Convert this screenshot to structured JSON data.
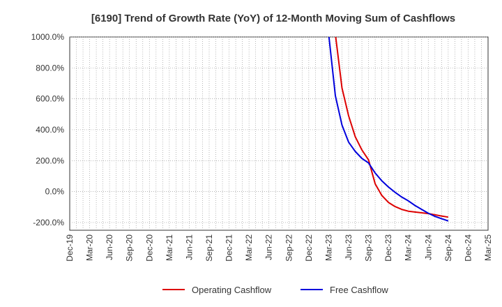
{
  "chart_data": {
    "type": "line",
    "title": "[6190]  Trend of Growth Rate (YoY) of 12-Month Moving Sum of Cashflows",
    "xlabel": "",
    "ylabel": "",
    "x_ticks": [
      "Dec-19",
      "Mar-20",
      "Jun-20",
      "Sep-20",
      "Dec-20",
      "Mar-21",
      "Jun-21",
      "Sep-21",
      "Dec-21",
      "Mar-22",
      "Jun-22",
      "Sep-22",
      "Dec-22",
      "Mar-23",
      "Jun-23",
      "Sep-23",
      "Dec-23",
      "Mar-24",
      "Jun-24",
      "Sep-24",
      "Dec-24",
      "Mar-25"
    ],
    "y_ticks": [
      "-200.0%",
      "0.0%",
      "200.0%",
      "400.0%",
      "600.0%",
      "800.0%",
      "1000.0%"
    ],
    "ylim": [
      -250,
      1000
    ],
    "y_unit": "%",
    "grid": true,
    "legend_position": "bottom",
    "series": [
      {
        "name": "Operating Cashflow",
        "color": "#dd0000",
        "x": [
          "2023-04",
          "2023-05",
          "2023-06",
          "2023-07",
          "2023-08",
          "2023-09",
          "2023-10",
          "2023-11",
          "2023-12",
          "2024-01",
          "2024-02",
          "2024-03",
          "2024-04",
          "2024-05",
          "2024-06",
          "2024-07",
          "2024-08",
          "2024-09"
        ],
        "values": [
          1000,
          670,
          490,
          355,
          270,
          205,
          50,
          -25,
          -70,
          -97,
          -115,
          -127,
          -132,
          -137,
          -142,
          -150,
          -158,
          -165
        ]
      },
      {
        "name": "Free Cashflow",
        "color": "#0000dd",
        "x": [
          "2023-03",
          "2023-04",
          "2023-05",
          "2023-06",
          "2023-07",
          "2023-08",
          "2023-09",
          "2023-10",
          "2023-11",
          "2023-12",
          "2024-01",
          "2024-02",
          "2024-03",
          "2024-04",
          "2024-05",
          "2024-06",
          "2024-07",
          "2024-08",
          "2024-09"
        ],
        "values": [
          1000,
          620,
          430,
          320,
          260,
          215,
          185,
          120,
          70,
          30,
          -5,
          -35,
          -60,
          -90,
          -115,
          -140,
          -160,
          -175,
          -190
        ]
      }
    ]
  }
}
